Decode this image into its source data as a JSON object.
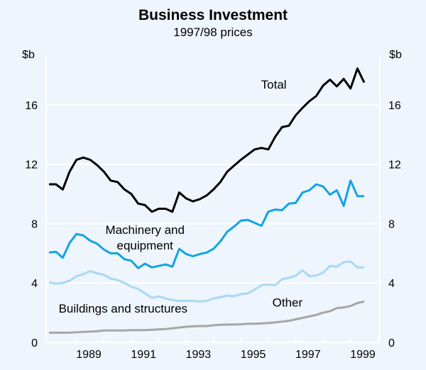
{
  "chart_data": {
    "type": "line",
    "title": "Business Investment",
    "subtitle": "1997/98 prices",
    "ylabel_left": "$b",
    "ylabel_right": "$b",
    "ylim": [
      0,
      20
    ],
    "yticks": [
      0,
      4,
      8,
      12,
      16
    ],
    "xlim": [
      1987.4,
      1999.6
    ],
    "xticks": [
      1989,
      1991,
      1993,
      1995,
      1997,
      1999
    ],
    "x_start": 1987.5,
    "x_step": 0.25,
    "grid": true,
    "series": [
      {
        "name": "Total",
        "color": "#000000",
        "label_pos": [
          1995.7,
          17.1
        ],
        "values": [
          10.65,
          10.65,
          10.3,
          11.5,
          12.3,
          12.45,
          12.3,
          11.95,
          11.5,
          10.9,
          10.8,
          10.3,
          10.0,
          9.35,
          9.25,
          8.8,
          9.0,
          9.0,
          8.8,
          10.1,
          9.7,
          9.5,
          9.65,
          9.9,
          10.3,
          10.8,
          11.5,
          11.9,
          12.3,
          12.65,
          13.0,
          13.1,
          13.0,
          13.85,
          14.5,
          14.6,
          15.3,
          15.8,
          16.25,
          16.6,
          17.3,
          17.7,
          17.25,
          17.75,
          17.1,
          18.45,
          17.5
        ]
      },
      {
        "name": "Machinery and equipment",
        "label_lines": [
          "Machinery and",
          "equipment"
        ],
        "color": "#10a4e4",
        "label_pos": [
          1991,
          7.3
        ],
        "values": [
          6.05,
          6.1,
          5.7,
          6.7,
          7.3,
          7.2,
          6.85,
          6.65,
          6.25,
          6.0,
          6.0,
          5.6,
          5.5,
          5.0,
          5.3,
          5.05,
          5.15,
          5.25,
          5.1,
          6.3,
          5.95,
          5.8,
          5.95,
          6.05,
          6.3,
          6.8,
          7.45,
          7.8,
          8.2,
          8.25,
          8.05,
          7.85,
          8.8,
          8.95,
          8.9,
          9.35,
          9.4,
          10.1,
          10.25,
          10.65,
          10.5,
          9.95,
          10.25,
          9.2,
          10.9,
          9.85,
          9.85
        ]
      },
      {
        "name": "Buildings and structures",
        "color": "#a8d8f6",
        "label_pos": [
          1990.2,
          2.0
        ],
        "values": [
          4.05,
          3.95,
          4.0,
          4.15,
          4.45,
          4.6,
          4.8,
          4.65,
          4.55,
          4.3,
          4.2,
          4.0,
          3.75,
          3.6,
          3.3,
          3.0,
          3.1,
          2.95,
          2.85,
          2.8,
          2.8,
          2.8,
          2.75,
          2.8,
          2.95,
          3.05,
          3.15,
          3.1,
          3.25,
          3.3,
          3.55,
          3.85,
          3.9,
          3.85,
          4.25,
          4.35,
          4.5,
          4.85,
          4.45,
          4.5,
          4.7,
          5.15,
          5.1,
          5.4,
          5.45,
          5.05,
          5.05
        ]
      },
      {
        "name": "Other",
        "color": "#a6a6a6",
        "label_pos": [
          1996.2,
          2.4
        ],
        "values": [
          0.65,
          0.65,
          0.65,
          0.65,
          0.68,
          0.7,
          0.72,
          0.75,
          0.8,
          0.8,
          0.8,
          0.8,
          0.82,
          0.82,
          0.82,
          0.85,
          0.88,
          0.9,
          0.95,
          1.0,
          1.05,
          1.08,
          1.1,
          1.1,
          1.15,
          1.18,
          1.2,
          1.2,
          1.22,
          1.25,
          1.25,
          1.28,
          1.3,
          1.35,
          1.4,
          1.45,
          1.55,
          1.65,
          1.75,
          1.85,
          2.0,
          2.1,
          2.3,
          2.35,
          2.45,
          2.65,
          2.75
        ]
      }
    ]
  }
}
